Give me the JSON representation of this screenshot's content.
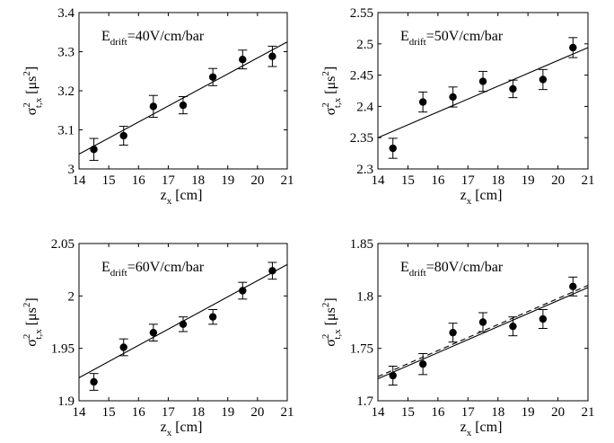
{
  "chart_data": [
    {
      "type": "scatter",
      "annotation": {
        "prefix": "E",
        "sub": "drift",
        "suffix": "=40V/cm/bar"
      },
      "xlabel": {
        "base": "z",
        "sub": "x",
        "unit": " [cm]"
      },
      "ylabel": {
        "base": "σ",
        "sup": "2",
        "sub": "t,x",
        "unit": " [μs",
        "unit_sup": "2",
        "unit_close": "]"
      },
      "xlim": [
        14,
        21
      ],
      "ylim": [
        3.0,
        3.4
      ],
      "xticks": [
        "14",
        "15",
        "16",
        "17",
        "18",
        "19",
        "20",
        "21"
      ],
      "yticks": [
        "3",
        "3.1",
        "3.2",
        "3.3",
        "3.4"
      ],
      "x": [
        14.5,
        15.5,
        16.5,
        17.5,
        18.5,
        19.5,
        20.5
      ],
      "y": [
        3.05,
        3.085,
        3.16,
        3.163,
        3.235,
        3.28,
        3.288
      ],
      "yerr": [
        0.028,
        0.024,
        0.028,
        0.022,
        0.022,
        0.024,
        0.026
      ],
      "fits": [
        {
          "style": "solid",
          "x": [
            14,
            21
          ],
          "y": [
            3.038,
            3.325
          ]
        }
      ]
    },
    {
      "type": "scatter",
      "annotation": {
        "prefix": "E",
        "sub": "drift",
        "suffix": "=50V/cm/bar"
      },
      "xlabel": {
        "base": "z",
        "sub": "x",
        "unit": " [cm]"
      },
      "ylabel": {
        "base": "σ",
        "sup": "2",
        "sub": "t,x",
        "unit": " [μs",
        "unit_sup": "2",
        "unit_close": "]"
      },
      "xlim": [
        14,
        21
      ],
      "ylim": [
        2.3,
        2.55
      ],
      "xticks": [
        "14",
        "15",
        "16",
        "17",
        "18",
        "19",
        "20",
        "21"
      ],
      "yticks": [
        "2.3",
        "2.35",
        "2.4",
        "2.45",
        "2.5",
        "2.55"
      ],
      "x": [
        14.5,
        15.5,
        16.5,
        17.5,
        18.5,
        19.5,
        20.5
      ],
      "y": [
        2.333,
        2.407,
        2.415,
        2.44,
        2.428,
        2.443,
        2.494
      ],
      "yerr": [
        0.016,
        0.016,
        0.016,
        0.016,
        0.014,
        0.016,
        0.016
      ],
      "fits": [
        {
          "style": "solid",
          "x": [
            14,
            21
          ],
          "y": [
            2.35,
            2.494
          ]
        }
      ]
    },
    {
      "type": "scatter",
      "annotation": {
        "prefix": "E",
        "sub": "drift",
        "suffix": "=60V/cm/bar"
      },
      "xlabel": {
        "base": "z",
        "sub": "x",
        "unit": " [cm]"
      },
      "ylabel": {
        "base": "σ",
        "sup": "2",
        "sub": "t,x",
        "unit": " [μs",
        "unit_sup": "2",
        "unit_close": "]"
      },
      "xlim": [
        14,
        21
      ],
      "ylim": [
        1.9,
        2.05
      ],
      "xticks": [
        "14",
        "15",
        "16",
        "17",
        "18",
        "19",
        "20",
        "21"
      ],
      "yticks": [
        "1.9",
        "1.95",
        "2",
        "2.05"
      ],
      "x": [
        14.5,
        15.5,
        16.5,
        17.5,
        18.5,
        19.5,
        20.5
      ],
      "y": [
        1.918,
        1.951,
        1.965,
        1.973,
        1.98,
        2.005,
        2.024
      ],
      "yerr": [
        0.008,
        0.008,
        0.008,
        0.007,
        0.007,
        0.008,
        0.008
      ],
      "fits": [
        {
          "style": "solid",
          "x": [
            14,
            21
          ],
          "y": [
            1.922,
            2.03
          ]
        }
      ]
    },
    {
      "type": "scatter",
      "annotation": {
        "prefix": "E",
        "sub": "drift",
        "suffix": "=80V/cm/bar"
      },
      "xlabel": {
        "base": "z",
        "sub": "x",
        "unit": " [cm]"
      },
      "ylabel": {
        "base": "σ",
        "sup": "2",
        "sub": "t,x",
        "unit": " [μs",
        "unit_sup": "2",
        "unit_close": "]"
      },
      "xlim": [
        14,
        21
      ],
      "ylim": [
        1.7,
        1.85
      ],
      "xticks": [
        "14",
        "15",
        "16",
        "17",
        "18",
        "19",
        "20",
        "21"
      ],
      "yticks": [
        "1.7",
        "1.75",
        "1.8",
        "1.85"
      ],
      "x": [
        14.5,
        15.5,
        16.5,
        17.5,
        18.5,
        19.5,
        20.5
      ],
      "y": [
        1.724,
        1.735,
        1.765,
        1.775,
        1.771,
        1.778,
        1.809
      ],
      "yerr": [
        0.009,
        0.01,
        0.009,
        0.009,
        0.009,
        0.009,
        0.009
      ],
      "fits": [
        {
          "style": "solid",
          "x": [
            14,
            21
          ],
          "y": [
            1.721,
            1.808
          ]
        },
        {
          "style": "dashed",
          "x": [
            14,
            21
          ],
          "y": [
            1.723,
            1.81
          ]
        }
      ]
    }
  ]
}
